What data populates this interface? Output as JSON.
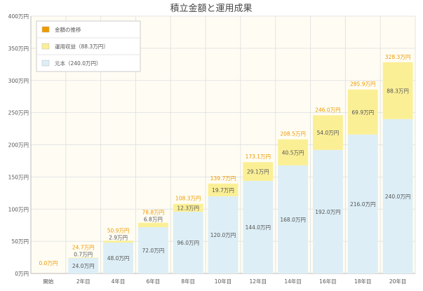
{
  "chart_data": {
    "type": "bar",
    "stacked": true,
    "title": "積立金額と運用成果",
    "categories": [
      "開始",
      "2年目",
      "4年目",
      "6年目",
      "8年目",
      "10年目",
      "12年目",
      "14年目",
      "16年目",
      "18年目",
      "20年目"
    ],
    "series": [
      {
        "name": "元本（240.0万円）",
        "color": "#ddeef6",
        "values": [
          0,
          24.0,
          48.0,
          72.0,
          96.0,
          120.0,
          144.0,
          168.0,
          192.0,
          216.0,
          240.0
        ],
        "labels": [
          "",
          "24.0万円",
          "48.0万円",
          "72.0万円",
          "96.0万円",
          "120.0万円",
          "144.0万円",
          "168.0万円",
          "192.0万円",
          "216.0万円",
          "240.0万円"
        ]
      },
      {
        "name": "運用収益（88.3万円）",
        "color": "#fbef96",
        "values": [
          0,
          0.7,
          2.9,
          6.8,
          12.3,
          19.7,
          29.1,
          40.5,
          54.0,
          69.9,
          88.3
        ],
        "labels": [
          "",
          "0.7万円",
          "2.9万円",
          "6.8万円",
          "12.3万円",
          "19.7万円",
          "29.1万円",
          "40.5万円",
          "54.0万円",
          "69.9万円",
          "88.3万円"
        ]
      }
    ],
    "totals": {
      "name": "金額の推移",
      "color": "#ee9900",
      "labels": [
        "0.0万円",
        "24.7万円",
        "50.9万円",
        "78.8万円",
        "108.3万円",
        "139.7万円",
        "173.1万円",
        "208.5万円",
        "246.0万円",
        "285.9万円",
        "328.3万円"
      ]
    },
    "ylim": [
      0,
      400
    ],
    "yticks": [
      0,
      50,
      100,
      150,
      200,
      250,
      300,
      350,
      400
    ],
    "ytick_labels": [
      "0万円",
      "50万円",
      "100万円",
      "150万円",
      "200万円",
      "250万円",
      "300万円",
      "350万円",
      "400万円"
    ],
    "grid": true,
    "legend_position": "top-left",
    "colors": {
      "plot_bg": "#fffdf3",
      "grid": "#e3e3e3",
      "axis": "#bbbbbb",
      "text": "#555555",
      "total_label": "#ee9900"
    }
  }
}
